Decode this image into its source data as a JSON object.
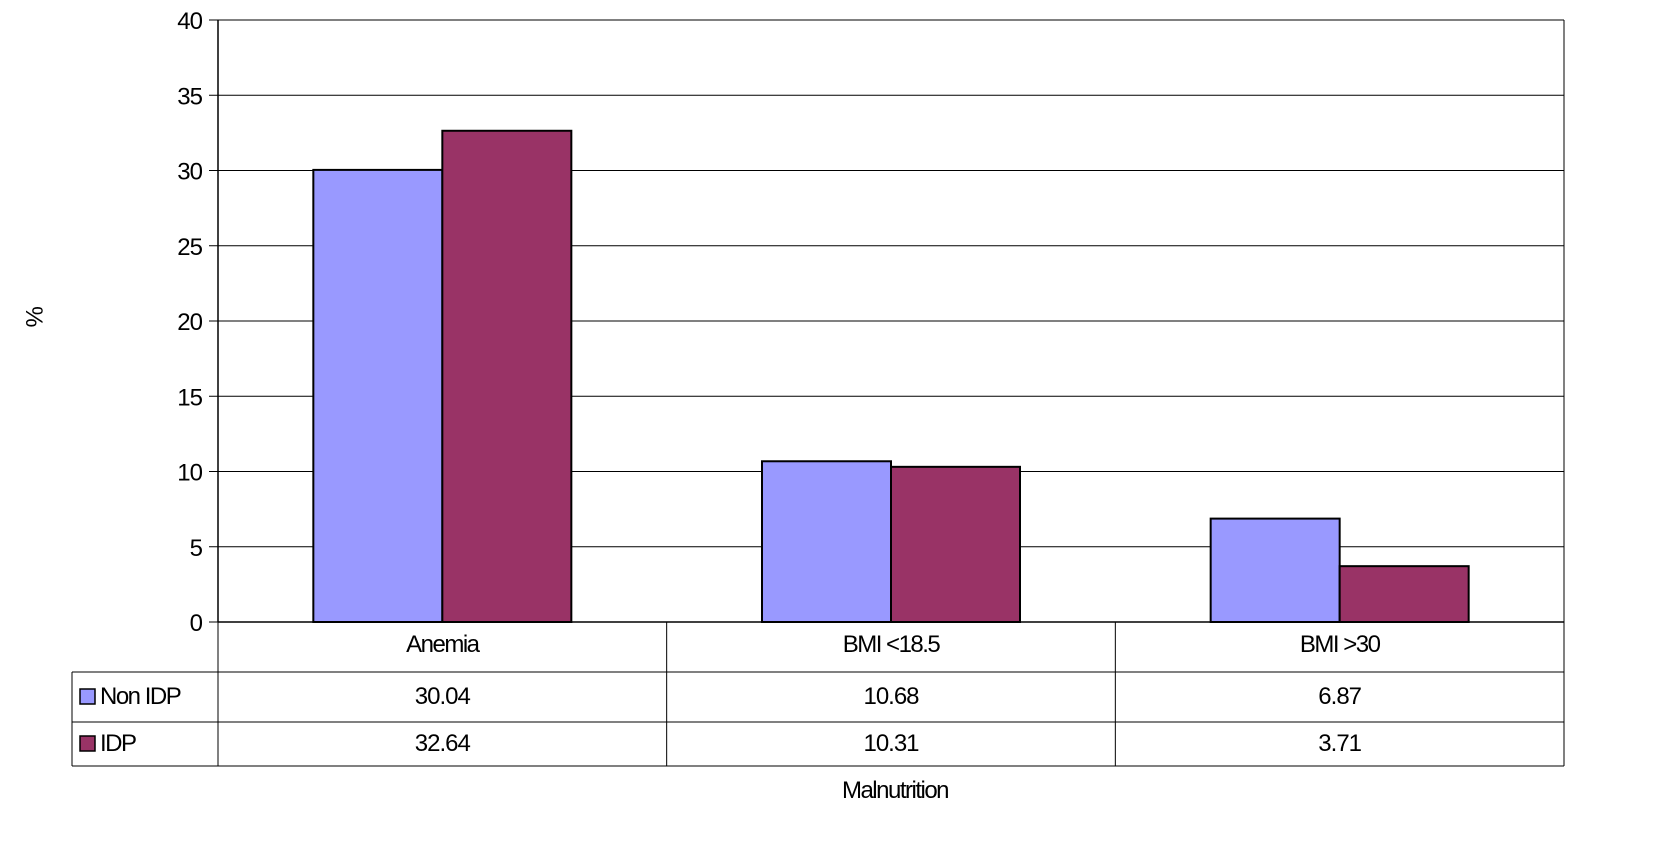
{
  "chart_data": {
    "type": "bar",
    "categories": [
      "Anemia",
      "BMI <18.5",
      "BMI >30"
    ],
    "series": [
      {
        "name": "Non IDP",
        "values": [
          30.04,
          10.68,
          6.87
        ],
        "value_labels": [
          "30.04",
          "10.68",
          "6.87"
        ],
        "color": "#9999ff"
      },
      {
        "name": "IDP",
        "values": [
          32.64,
          10.31,
          3.71
        ],
        "value_labels": [
          "32.64",
          "10.31",
          "3.71"
        ],
        "color": "#993366"
      }
    ],
    "title": "",
    "xlabel": "Malnutrition",
    "ylabel": "%",
    "ylim": [
      0,
      40
    ],
    "yticks": [
      "0",
      "5",
      "10",
      "15",
      "20",
      "25",
      "30",
      "35",
      "40"
    ],
    "grid": true,
    "legend": "data-table",
    "data_table": true
  }
}
